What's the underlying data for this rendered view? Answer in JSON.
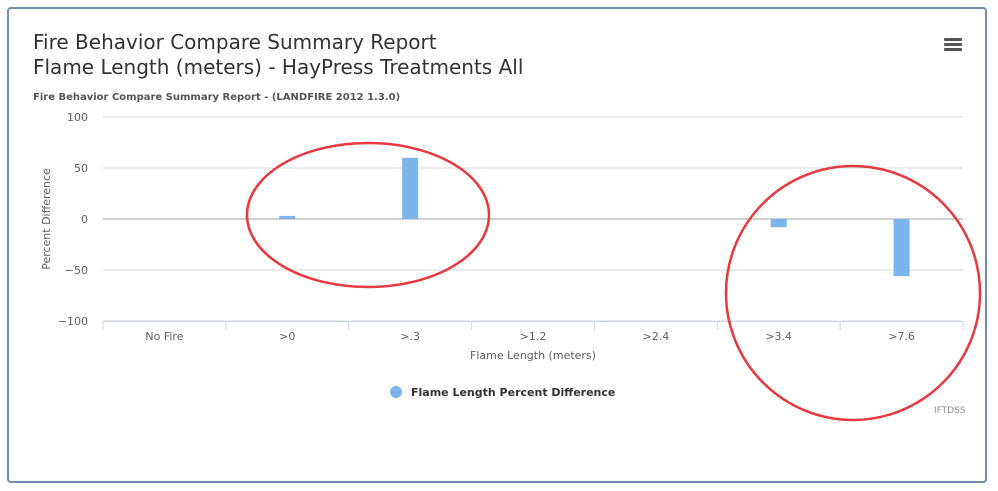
{
  "chart": {
    "title_line1": "Fire Behavior Compare Summary Report",
    "title_line2": "Flame Length (meters) - HayPress Treatments All",
    "subtitle": "Fire Behavior Compare Summary Report - (LANDFIRE 2012 1.3.0)",
    "credit": "IFTDSS",
    "menu_icon": "hamburger-menu-icon"
  },
  "colors": {
    "bar": "#7cb5ec",
    "annotation_circle": "#e8393f",
    "gridline": "#d8d8d8",
    "zero_line": "#a0a0a0"
  },
  "chart_data": {
    "type": "bar",
    "title": "Fire Behavior Compare Summary Report Flame Length (meters) - HayPress Treatments All",
    "subtitle": "Fire Behavior Compare Summary Report - (LANDFIRE 2012 1.3.0)",
    "categories": [
      "No Fire",
      ">0",
      ">.3",
      ">1.2",
      ">2.4",
      ">3.4",
      ">7.6"
    ],
    "series": [
      {
        "name": "Flame Length Percent Difference",
        "values": [
          0,
          3,
          60,
          0,
          0,
          -8,
          -56
        ]
      }
    ],
    "xlabel": "Flame Length (meters)",
    "ylabel": "Percent Difference",
    "ylim": [
      -100,
      100
    ],
    "yticks": [
      100,
      50,
      0,
      -50,
      -100
    ],
    "grid": true,
    "legend": "bottom-center",
    "annotations": [
      "red ellipse around >0 and >.3 bars",
      "red ellipse around >3.4 and >7.6 bars"
    ]
  }
}
